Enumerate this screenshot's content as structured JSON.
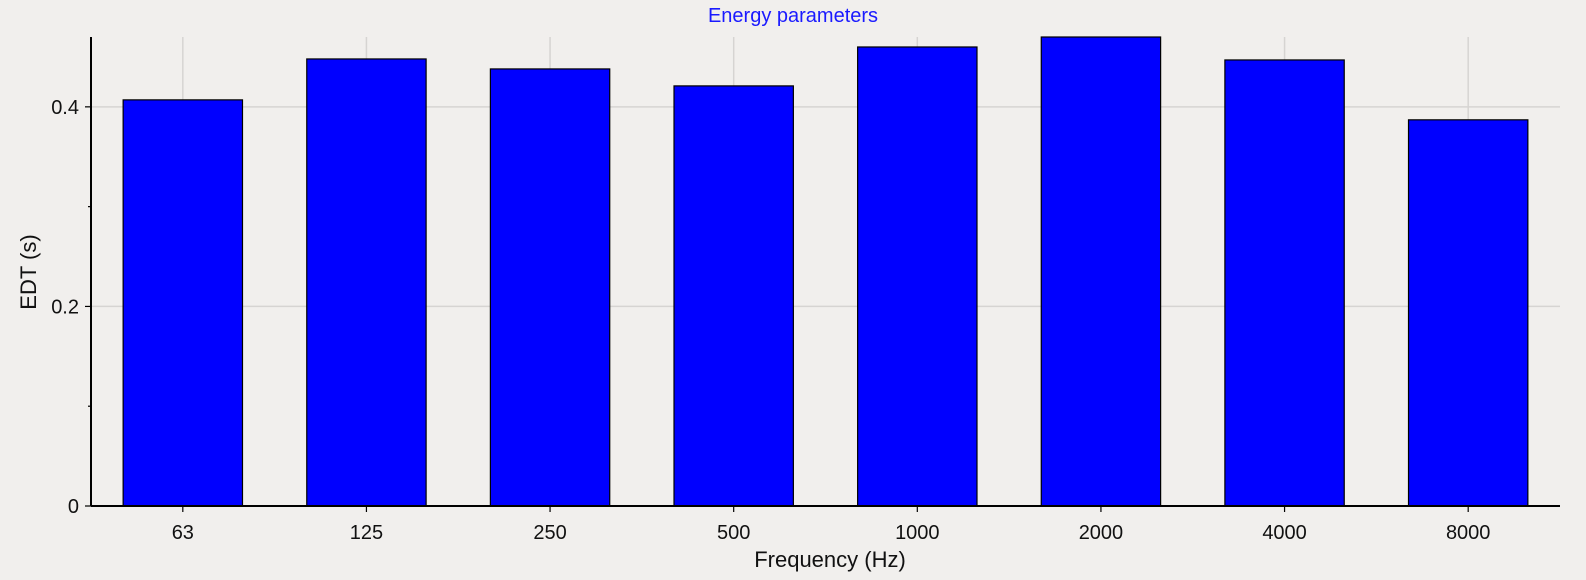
{
  "chart_data": {
    "type": "bar",
    "title": "Energy parameters",
    "xlabel": "Frequency (Hz)",
    "ylabel": "EDT (s)",
    "categories": [
      "63",
      "125",
      "250",
      "500",
      "1000",
      "2000",
      "4000",
      "8000"
    ],
    "series": [
      {
        "values": [
          0.407,
          0.448,
          0.438,
          0.421,
          0.46,
          0.47,
          0.447,
          0.387
        ]
      }
    ],
    "ylim": [
      0,
      0.47
    ],
    "yticks": [
      0,
      0.2,
      0.4
    ],
    "ytick_labels": [
      "0",
      "0.2",
      "0.4"
    ],
    "grid": true,
    "bar_color": "#0000ff",
    "title_color": "#1a1aff",
    "background_color": "#f1efed"
  }
}
